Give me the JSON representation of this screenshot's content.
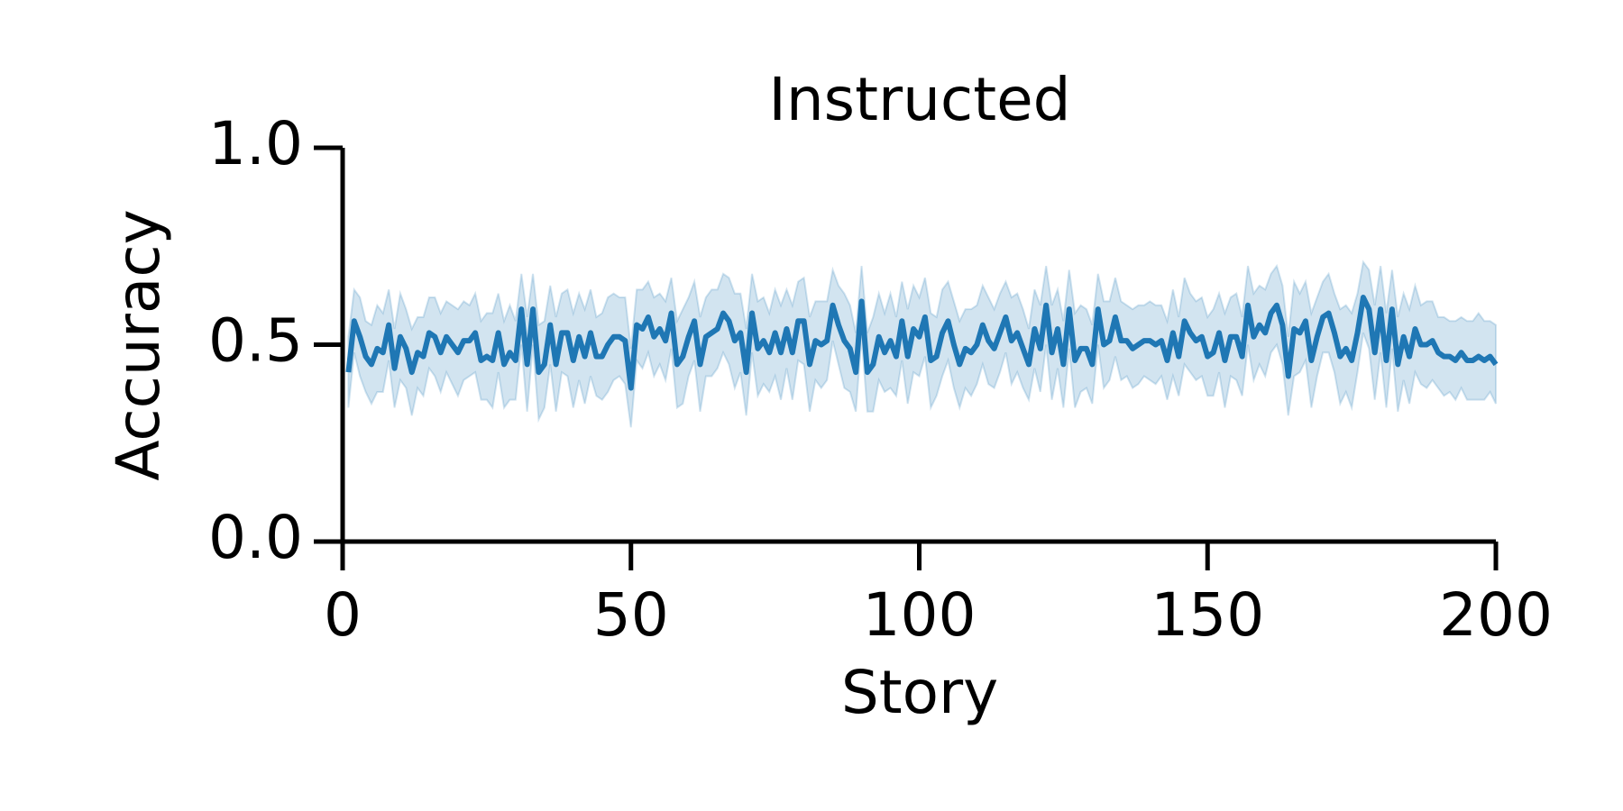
{
  "chart_data": {
    "type": "line",
    "title": "Instructed",
    "x_label": "Story",
    "y_label": "Accuracy",
    "x": [
      1,
      2,
      3,
      4,
      5,
      6,
      7,
      8,
      9,
      10,
      11,
      12,
      13,
      14,
      15,
      16,
      17,
      18,
      19,
      20,
      21,
      22,
      23,
      24,
      25,
      26,
      27,
      28,
      29,
      30,
      31,
      32,
      33,
      34,
      35,
      36,
      37,
      38,
      39,
      40,
      41,
      42,
      43,
      44,
      45,
      46,
      47,
      48,
      49,
      50,
      51,
      52,
      53,
      54,
      55,
      56,
      57,
      58,
      59,
      60,
      61,
      62,
      63,
      64,
      65,
      66,
      67,
      68,
      69,
      70,
      71,
      72,
      73,
      74,
      75,
      76,
      77,
      78,
      79,
      80,
      81,
      82,
      83,
      84,
      85,
      86,
      87,
      88,
      89,
      90,
      91,
      92,
      93,
      94,
      95,
      96,
      97,
      98,
      99,
      100,
      101,
      102,
      103,
      104,
      105,
      106,
      107,
      108,
      109,
      110,
      111,
      112,
      113,
      114,
      115,
      116,
      117,
      118,
      119,
      120,
      121,
      122,
      123,
      124,
      125,
      126,
      127,
      128,
      129,
      130,
      131,
      132,
      133,
      134,
      135,
      136,
      137,
      138,
      139,
      140,
      141,
      142,
      143,
      144,
      145,
      146,
      147,
      148,
      149,
      150,
      151,
      152,
      153,
      154,
      155,
      156,
      157,
      158,
      159,
      160,
      161,
      162,
      163,
      164,
      165,
      166,
      167,
      168,
      169,
      170,
      171,
      172,
      173,
      174,
      175,
      176,
      177,
      178,
      179,
      180,
      181,
      182,
      183,
      184,
      185,
      186,
      187,
      188,
      189,
      190,
      191,
      192,
      193,
      194,
      195,
      196,
      197,
      198,
      199,
      200
    ],
    "series": [
      {
        "color": "#1f77b4",
        "values": [
          0.43,
          0.56,
          0.52,
          0.47,
          0.45,
          0.49,
          0.48,
          0.55,
          0.44,
          0.52,
          0.49,
          0.43,
          0.48,
          0.47,
          0.53,
          0.52,
          0.48,
          0.52,
          0.5,
          0.48,
          0.51,
          0.51,
          0.53,
          0.46,
          0.47,
          0.46,
          0.53,
          0.45,
          0.48,
          0.46,
          0.59,
          0.45,
          0.59,
          0.43,
          0.45,
          0.55,
          0.45,
          0.53,
          0.53,
          0.46,
          0.52,
          0.47,
          0.53,
          0.47,
          0.47,
          0.5,
          0.52,
          0.52,
          0.51,
          0.39,
          0.55,
          0.54,
          0.57,
          0.52,
          0.54,
          0.51,
          0.58,
          0.45,
          0.47,
          0.52,
          0.56,
          0.45,
          0.52,
          0.53,
          0.54,
          0.58,
          0.56,
          0.51,
          0.53,
          0.43,
          0.58,
          0.49,
          0.51,
          0.48,
          0.53,
          0.48,
          0.54,
          0.48,
          0.56,
          0.56,
          0.45,
          0.51,
          0.5,
          0.51,
          0.6,
          0.55,
          0.51,
          0.49,
          0.43,
          0.61,
          0.43,
          0.45,
          0.52,
          0.48,
          0.51,
          0.47,
          0.56,
          0.47,
          0.54,
          0.52,
          0.57,
          0.46,
          0.47,
          0.53,
          0.56,
          0.5,
          0.45,
          0.49,
          0.48,
          0.5,
          0.55,
          0.51,
          0.49,
          0.53,
          0.57,
          0.51,
          0.53,
          0.49,
          0.45,
          0.54,
          0.49,
          0.6,
          0.48,
          0.54,
          0.45,
          0.59,
          0.46,
          0.49,
          0.49,
          0.45,
          0.59,
          0.5,
          0.51,
          0.57,
          0.51,
          0.51,
          0.49,
          0.5,
          0.51,
          0.51,
          0.5,
          0.51,
          0.46,
          0.53,
          0.47,
          0.56,
          0.53,
          0.51,
          0.52,
          0.47,
          0.48,
          0.53,
          0.46,
          0.52,
          0.52,
          0.47,
          0.6,
          0.52,
          0.55,
          0.53,
          0.58,
          0.6,
          0.55,
          0.42,
          0.54,
          0.53,
          0.56,
          0.46,
          0.52,
          0.57,
          0.58,
          0.53,
          0.47,
          0.49,
          0.46,
          0.53,
          0.62,
          0.59,
          0.48,
          0.59,
          0.46,
          0.59,
          0.45,
          0.52,
          0.47,
          0.54,
          0.5,
          0.5,
          0.51,
          0.48,
          0.47,
          0.47,
          0.46,
          0.48,
          0.46,
          0.46,
          0.47,
          0.46,
          0.47,
          0.45
        ],
        "errors": [
          0.09,
          0.08,
          0.1,
          0.09,
          0.1,
          0.11,
          0.1,
          0.09,
          0.1,
          0.11,
          0.1,
          0.11,
          0.09,
          0.1,
          0.09,
          0.1,
          0.1,
          0.09,
          0.1,
          0.11,
          0.1,
          0.09,
          0.1,
          0.1,
          0.11,
          0.12,
          0.1,
          0.11,
          0.12,
          0.1,
          0.09,
          0.12,
          0.09,
          0.12,
          0.11,
          0.1,
          0.12,
          0.1,
          0.11,
          0.12,
          0.11,
          0.12,
          0.11,
          0.1,
          0.11,
          0.12,
          0.11,
          0.1,
          0.11,
          0.1,
          0.09,
          0.1,
          0.09,
          0.1,
          0.09,
          0.1,
          0.09,
          0.11,
          0.12,
          0.1,
          0.1,
          0.12,
          0.1,
          0.11,
          0.1,
          0.1,
          0.11,
          0.12,
          0.1,
          0.11,
          0.1,
          0.12,
          0.11,
          0.1,
          0.11,
          0.12,
          0.1,
          0.12,
          0.1,
          0.11,
          0.12,
          0.1,
          0.11,
          0.1,
          0.09,
          0.1,
          0.12,
          0.11,
          0.1,
          0.09,
          0.1,
          0.12,
          0.11,
          0.1,
          0.12,
          0.1,
          0.1,
          0.12,
          0.11,
          0.1,
          0.1,
          0.12,
          0.1,
          0.11,
          0.1,
          0.11,
          0.11,
          0.1,
          0.11,
          0.1,
          0.1,
          0.11,
          0.1,
          0.1,
          0.09,
          0.11,
          0.1,
          0.1,
          0.09,
          0.1,
          0.11,
          0.1,
          0.12,
          0.1,
          0.11,
          0.1,
          0.12,
          0.11,
          0.1,
          0.1,
          0.09,
          0.11,
          0.1,
          0.1,
          0.1,
          0.09,
          0.1,
          0.1,
          0.09,
          0.1,
          0.1,
          0.09,
          0.1,
          0.11,
          0.1,
          0.11,
          0.1,
          0.1,
          0.1,
          0.1,
          0.11,
          0.1,
          0.12,
          0.1,
          0.11,
          0.1,
          0.1,
          0.11,
          0.1,
          0.11,
          0.1,
          0.1,
          0.1,
          0.1,
          0.12,
          0.1,
          0.1,
          0.12,
          0.1,
          0.09,
          0.1,
          0.1,
          0.12,
          0.11,
          0.12,
          0.1,
          0.09,
          0.1,
          0.12,
          0.11,
          0.12,
          0.1,
          0.12,
          0.11,
          0.12,
          0.11,
          0.1,
          0.11,
          0.1,
          0.09,
          0.1,
          0.09,
          0.1,
          0.09,
          0.1,
          0.1,
          0.11,
          0.1,
          0.09,
          0.1
        ]
      }
    ],
    "xlim": [
      0,
      200
    ],
    "xticks": [
      0,
      50,
      100,
      150,
      200
    ],
    "ylim": [
      0,
      1
    ],
    "yticks": [
      {
        "value": 0,
        "label": "0.0"
      },
      {
        "value": 0.5,
        "label": "0.5"
      },
      {
        "value": 1,
        "label": "1.0"
      }
    ],
    "band_opacity": 0.2
  }
}
